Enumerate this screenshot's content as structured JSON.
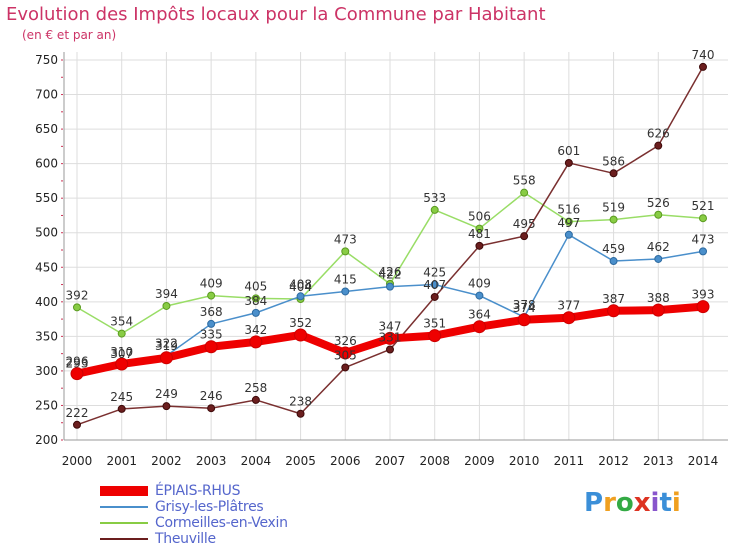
{
  "title": "Evolution des Impôts locaux pour la Commune par Habitant",
  "subtitle": "(en € et par an)",
  "logo": {
    "text": "Proxiti",
    "colors": [
      "#3b8fd8",
      "#f0a020",
      "#33aa44",
      "#dd3322",
      "#8855cc",
      "#3b8fd8",
      "#f0a020"
    ]
  },
  "chart_data": {
    "type": "line",
    "title": "Evolution des Impôts locaux pour la Commune par Habitant",
    "subtitle": "(en € et par an)",
    "x": [
      "2000",
      "2001",
      "2002",
      "2003",
      "2004",
      "2005",
      "2006",
      "2007",
      "2008",
      "2009",
      "2010",
      "2011",
      "2012",
      "2013",
      "2014"
    ],
    "ylim": [
      200,
      750
    ],
    "yticks": [
      200,
      250,
      300,
      350,
      400,
      450,
      500,
      550,
      600,
      650,
      700,
      750
    ],
    "grid": true,
    "legend": "bottom-left",
    "series": [
      {
        "name": "ÉPIAIS-RHUS",
        "color": "#ee0000",
        "values": [
          296,
          310,
          319,
          335,
          342,
          352,
          326,
          347,
          351,
          364,
          374,
          377,
          387,
          388,
          393
        ]
      },
      {
        "name": "Grisy-les-Plâtres",
        "color": "#4a8fcb",
        "values": [
          293,
          307,
          322,
          368,
          384,
          408,
          415,
          422,
          425,
          409,
          378,
          497,
          459,
          462,
          473
        ]
      },
      {
        "name": "Cormeilles-en-Vexin",
        "color": "#88cc44",
        "values": [
          392,
          354,
          394,
          409,
          405,
          404,
          473,
          426,
          533,
          506,
          558,
          516,
          519,
          526,
          521
        ]
      },
      {
        "name": "Theuville",
        "color": "#6b1e1e",
        "values": [
          222,
          245,
          249,
          246,
          258,
          238,
          305,
          331,
          407,
          481,
          495,
          601,
          586,
          626,
          740
        ]
      }
    ]
  }
}
